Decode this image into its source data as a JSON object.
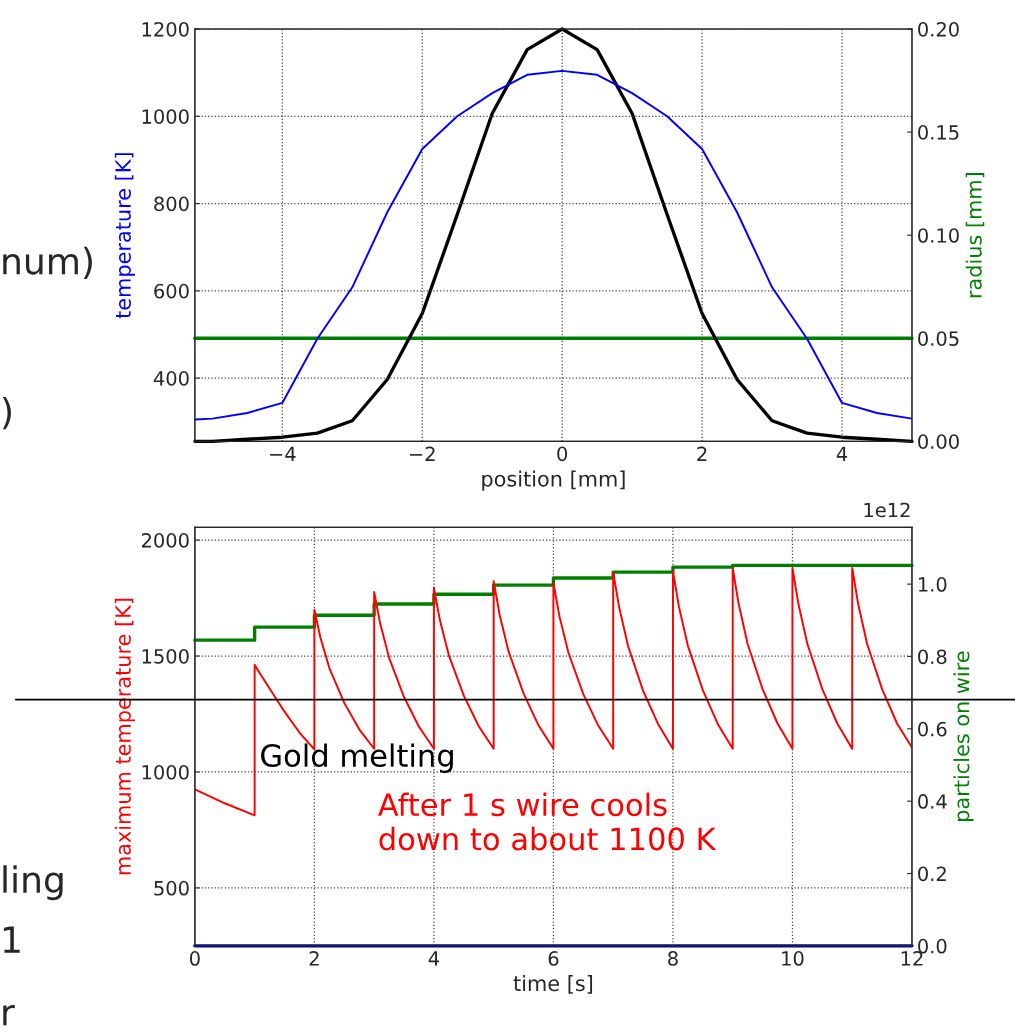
{
  "chart_data": [
    {
      "type": "line",
      "xlabel": "position [mm]",
      "ylabel": "temperature [K]",
      "y2label": "radius [mm]",
      "xlim": [
        -5.25,
        5
      ],
      "xticks": [
        {
          "value": -4,
          "label": "−4"
        },
        {
          "value": -2,
          "label": "−2"
        },
        0,
        2,
        4
      ],
      "ylim": [
        255,
        1200
      ],
      "yticks": [
        400,
        600,
        800,
        1000,
        1200
      ],
      "y2lim": [
        0,
        0.2
      ],
      "y2ticks": [
        {
          "value": 0,
          "label": "0.00"
        },
        {
          "value": 0.05,
          "label": "0.05"
        },
        {
          "value": 0.1,
          "label": "0.10"
        },
        {
          "value": 0.15,
          "label": "0.15"
        },
        {
          "value": 0.2,
          "label": "0.20"
        }
      ],
      "grid": true,
      "legend": false,
      "series": [
        {
          "color": "#0000ff",
          "x": [
            -5.25,
            -5,
            -4.5,
            -4,
            -3.5,
            -3,
            -2.5,
            -2,
            -1.5,
            -1,
            -0.5,
            0,
            0.5,
            1,
            1.5,
            2,
            2.5,
            3,
            3.5,
            4,
            4.5,
            5
          ],
          "values": [
            305,
            307,
            320,
            343,
            490,
            608,
            780,
            925,
            1000,
            1053,
            1095,
            1104,
            1095,
            1053,
            1000,
            925,
            780,
            608,
            490,
            343,
            320,
            307
          ]
        },
        {
          "color": "#008000",
          "axis": "y2",
          "x": [
            -5.25,
            5
          ],
          "values": [
            0.05,
            0.05
          ]
        },
        {
          "color": "#000000",
          "axis": "y2",
          "x": [
            -5.25,
            -5,
            -4.5,
            -4,
            -3.5,
            -3,
            -2.5,
            -2,
            -1.5,
            -1,
            -0.5,
            0,
            0.5,
            1,
            1.5,
            2,
            2.5,
            3,
            3.5,
            4,
            4.5,
            5
          ],
          "values": [
            0,
            0,
            0.001,
            0.002,
            0.004,
            0.01,
            0.03,
            0.062,
            0.11,
            0.159,
            0.19,
            0.2,
            0.19,
            0.159,
            0.11,
            0.062,
            0.03,
            0.01,
            0.004,
            0.002,
            0.001,
            0
          ]
        }
      ],
      "annotations": [
        "num)",
        ")"
      ]
    },
    {
      "type": "line",
      "xlabel": "time [s]",
      "ylabel": "maximum temperature [K]",
      "y2label": "particles on wire",
      "xlim": [
        0,
        12
      ],
      "xticks": [
        0,
        2,
        4,
        6,
        8,
        10,
        12
      ],
      "ylim": [
        250,
        2055
      ],
      "yticks": [
        500,
        1000,
        1500,
        2000
      ],
      "y2lim": [
        0,
        1.157
      ],
      "y2ticks": [
        {
          "value": 0,
          "label": "0.0"
        },
        {
          "value": 0.2,
          "label": "0.2"
        },
        {
          "value": 0.4,
          "label": "0.4"
        },
        {
          "value": 0.6,
          "label": "0.6"
        },
        {
          "value": 0.8,
          "label": "0.8"
        },
        {
          "value": 1.0,
          "label": "1.0"
        }
      ],
      "grid": true,
      "legend": false,
      "series": [
        {
          "color": "#ff0000",
          "x": [
            0,
            0.5,
            1,
            1,
            1.1,
            1.25,
            1.5,
            1.75,
            2,
            2,
            2.1,
            2.25,
            2.5,
            2.75,
            3,
            3,
            3.1,
            3.25,
            3.5,
            3.75,
            4,
            4,
            4.1,
            4.25,
            4.5,
            4.75,
            5,
            5,
            5.1,
            5.25,
            5.5,
            5.75,
            6,
            6,
            6.1,
            6.25,
            6.5,
            6.75,
            7,
            7,
            7.1,
            7.25,
            7.5,
            7.75,
            8,
            8,
            8.1,
            8.25,
            8.5,
            8.75,
            9,
            9,
            9.1,
            9.25,
            9.5,
            9.75,
            10,
            10,
            10.1,
            10.25,
            10.5,
            10.75,
            11,
            11,
            11.1,
            11.25,
            11.5,
            11.75,
            12
          ],
          "values": [
            925,
            865,
            813,
            1462,
            1420,
            1360,
            1260,
            1170,
            1097,
            1700,
            1580,
            1448,
            1298,
            1184,
            1100,
            1776,
            1641,
            1492,
            1323,
            1195,
            1100,
            1794,
            1655,
            1503,
            1329,
            1197,
            1100,
            1823,
            1678,
            1519,
            1339,
            1201,
            1100,
            1815,
            1672,
            1515,
            1336,
            1200,
            1100,
            1862,
            1710,
            1542,
            1351,
            1207,
            1100,
            1866,
            1713,
            1544,
            1353,
            1207,
            1100,
            1880,
            1724,
            1552,
            1357,
            1209,
            1100,
            1880,
            1724,
            1552,
            1357,
            1209,
            1100,
            1880,
            1724,
            1552,
            1357,
            1209,
            1105
          ]
        },
        {
          "type": "step",
          "color": "#008000",
          "axis": "y2",
          "x": [
            0,
            1,
            2,
            3,
            4,
            5,
            6,
            7,
            8,
            9,
            10,
            11,
            12
          ],
          "values": [
            0.845,
            0.881,
            0.914,
            0.945,
            0.972,
            0.997,
            1.017,
            1.033,
            1.047,
            1.052,
            1.052,
            1.052,
            1.052
          ]
        },
        {
          "color": "#0000a0",
          "axis": "y2",
          "x": [
            0,
            12
          ],
          "values": [
            0,
            0
          ]
        }
      ],
      "ref_lines": [
        {
          "axis": "y",
          "value": 1312,
          "label": "Gold melting",
          "color": "#000000"
        }
      ],
      "annotations": [
        "1e12",
        "After 1 s wire cools\ndown to about 1100 K",
        "ling",
        "1",
        "r"
      ]
    }
  ]
}
